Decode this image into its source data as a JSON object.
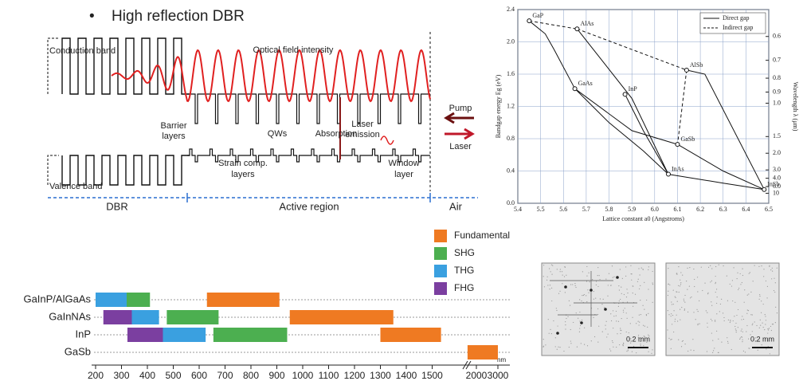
{
  "header": {
    "bullet": "•",
    "title": "High reflection DBR"
  },
  "band_diagram": {
    "conduction_band": "Conduction band",
    "optical_field": "Optical field intensity",
    "barrier_layers": [
      "Barrier",
      "layers"
    ],
    "qws": "QWs",
    "absorption": "Absorption",
    "laser_emission": [
      "Laser",
      "emission"
    ],
    "pump": "Pump",
    "laser": "Laser",
    "strain_comp": [
      "Strain comp.",
      "layers"
    ],
    "window_layer": [
      "Window",
      "layer"
    ],
    "valence_band": "Valence band",
    "regions": [
      "DBR",
      "Active region",
      "Air"
    ]
  },
  "micrographs": [
    {
      "scale": "0.2 mm"
    },
    {
      "scale": "0.2 mm"
    }
  ],
  "chart_data": [
    {
      "type": "scatter",
      "y_label": "Bandgap energy Eg (eV)",
      "x_label": "Lattice constant a0 (Angstroms)",
      "y2_label": "Wavelength λ (μm)",
      "xlim": [
        5.4,
        6.5
      ],
      "xticks": [
        5.4,
        5.5,
        5.6,
        5.7,
        5.8,
        5.9,
        {
          "value": 6,
          "label": "6.0"
        },
        6.1,
        6.2,
        6.3,
        6.4,
        6.5
      ],
      "ylim": [
        0,
        2.4
      ],
      "yticks": [
        {
          "value": 0,
          "label": "0.0"
        },
        0.4,
        0.8,
        1.2,
        1.6,
        {
          "value": 2,
          "label": "2.0"
        },
        2.4
      ],
      "y2ticks": [
        0.6,
        0.7,
        0.8,
        0.9,
        {
          "value": 1,
          "label": "1.0"
        },
        1.5,
        {
          "value": 2,
          "label": "2.0"
        },
        {
          "value": 3,
          "label": "3.0"
        },
        {
          "value": 4,
          "label": "4.0"
        },
        {
          "value": 6,
          "label": "6.0"
        },
        10
      ],
      "grid": true,
      "legend": "upper-right",
      "points": {
        "labels": [
          "GaP",
          "AlAs",
          "GaAs",
          "InP",
          "AlSb",
          "GaSb",
          "InAs",
          "InSb"
        ],
        "x": [
          5.45,
          5.66,
          5.65,
          5.87,
          6.14,
          6.1,
          6.06,
          6.48
        ],
        "y": [
          2.26,
          2.16,
          1.42,
          1.35,
          1.65,
          0.73,
          0.36,
          0.17
        ]
      },
      "series": [
        {
          "name": "Direct gap",
          "color": "#111111",
          "dash": false,
          "x": [
            5.45,
            5.52,
            5.56,
            5.65,
            null,
            5.65,
            5.8,
            5.95,
            6.06,
            null,
            5.87,
            5.95,
            6.06,
            null,
            5.66,
            5.9,
            6.06,
            null,
            6.06,
            6.3,
            6.48,
            null,
            6.1,
            6.3,
            6.48,
            null,
            6.14,
            6.22,
            6.48,
            null,
            5.65,
            5.9,
            6.1
          ],
          "values": [
            2.26,
            2.1,
            1.9,
            1.42,
            null,
            1.42,
            1.0,
            0.65,
            0.36,
            null,
            1.35,
            0.9,
            0.36,
            null,
            2.16,
            1.3,
            0.36,
            null,
            0.36,
            0.25,
            0.17,
            null,
            0.73,
            0.4,
            0.17,
            null,
            1.65,
            1.6,
            0.17,
            null,
            1.42,
            0.9,
            0.73
          ]
        },
        {
          "name": "Indirect gap",
          "color": "#111111",
          "dash": true,
          "x": [
            5.45,
            5.66,
            null,
            5.66,
            6.14,
            null,
            6.14,
            6.1
          ],
          "values": [
            2.26,
            2.16,
            null,
            2.16,
            1.65,
            null,
            1.65,
            0.73
          ]
        }
      ]
    },
    {
      "type": "range-bar",
      "categories": [
        "GaInP/AlGaAs",
        "GaInNAs",
        "InP",
        "GaSb"
      ],
      "xlim": [
        200,
        3000
      ],
      "xticks": [
        200,
        300,
        400,
        500,
        600,
        700,
        800,
        900,
        1000,
        1100,
        1200,
        1300,
        1400,
        1500,
        2000,
        3000
      ],
      "x_unit": "nm",
      "legend": "upper-right",
      "series": [
        {
          "name": "Fundamental",
          "color": "#ef7a22",
          "values": [
            [
              630,
              910
            ],
            [
              950,
              1350
            ],
            [
              1300,
              1600
            ],
            [
              1900,
              3000
            ]
          ]
        },
        {
          "name": "SHG",
          "color": "#4caf50",
          "values": [
            [
              320,
              410
            ],
            [
              475,
              675
            ],
            [
              655,
              940
            ],
            null
          ]
        },
        {
          "name": "THG",
          "color": "#3aa0e0",
          "values": [
            [
              200,
              320
            ],
            [
              340,
              445
            ],
            [
              460,
              625
            ],
            null
          ]
        },
        {
          "name": "FHG",
          "color": "#7b3fa0",
          "values": [
            null,
            [
              230,
              340
            ],
            [
              323,
              460
            ],
            null
          ]
        }
      ]
    }
  ]
}
